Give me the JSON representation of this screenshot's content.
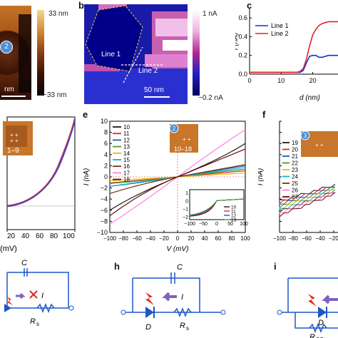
{
  "panel_letters": {
    "b": "b",
    "c": "c",
    "e": "e",
    "f": "f",
    "h": "h",
    "i": "i"
  },
  "panel_a": {
    "colorbar_top": "33 nm",
    "colorbar_bottom": "−33 nm",
    "scale": "nm",
    "marker": "2",
    "colors": [
      "#f2c873",
      "#c77a2a",
      "#5a2810",
      "#140604"
    ]
  },
  "panel_b": {
    "colorbar_top": "1 nA",
    "colorbar_bottom": "−0.2 nA",
    "scale": "50 nm",
    "line1": "Line 1",
    "line2": "Line 2",
    "colors": [
      "#ffffff",
      "#e89ad8",
      "#a02080",
      "#1818b8",
      "#00006a"
    ]
  },
  "panel_d": {
    "inset": "1–9",
    "x_ticks": [
      "20",
      "40",
      "60",
      "80",
      "100"
    ],
    "xlabel": "(mV)"
  },
  "panel_e": {
    "inset_label": "10–18",
    "marker": "2",
    "ylabel": "I (nA)",
    "xlabel": "V (mV)",
    "y_ticks": [
      "10",
      "8",
      "6",
      "4",
      "2",
      "0",
      "−2",
      "−4",
      "−6",
      "−8",
      "−10"
    ],
    "x_ticks": [
      "−100",
      "−80",
      "−60",
      "−40",
      "−20",
      "0",
      "20",
      "40",
      "60",
      "80",
      "100"
    ],
    "legend": [
      "10",
      "11",
      "12",
      "13",
      "14",
      "15",
      "16",
      "17",
      "18"
    ],
    "colors": [
      "#1a1a1a",
      "#e6261f",
      "#1f56c8",
      "#4a9a2a",
      "#f0b400",
      "#00b4d8",
      "#7a2e12",
      "#ff80e0",
      "#6a0a0a"
    ],
    "subinset": {
      "y_ticks": [
        "1",
        "0",
        "−1",
        "−2"
      ],
      "x_ticks": [
        "−100",
        "−50",
        "0",
        "50",
        "100"
      ],
      "legend": [
        "10",
        "11",
        "12",
        "13"
      ]
    }
  },
  "panel_f": {
    "marker": "3",
    "ylabel": "I (nA)",
    "x_ticks": [
      "−100",
      "−80",
      "−60",
      "−40",
      "−20"
    ],
    "legend": [
      "19",
      "20",
      "21",
      "22",
      "23",
      "24",
      "25",
      "26",
      "27"
    ],
    "colors": [
      "#1a1a1a",
      "#e6261f",
      "#1f56c8",
      "#4a9a2a",
      "#f0b400",
      "#00b4d8",
      "#7a2e12",
      "#ff80e0",
      "#6a0a0a"
    ]
  },
  "chart_data": [
    {
      "type": "line",
      "title": "",
      "xlabel": "d (nm)",
      "ylabel": "I (nA)",
      "y_ticks": [
        "0.6",
        "0.4",
        "0.2",
        "0.0"
      ],
      "x_ticks": [
        "0",
        "10",
        "20"
      ],
      "ylim": [
        0,
        0.7
      ],
      "xlim": [
        0,
        28
      ],
      "series": [
        {
          "name": "Line 1",
          "color": "#1030d0",
          "x": [
            0,
            2,
            4,
            6,
            8,
            10,
            12,
            14,
            15,
            16,
            17,
            18,
            19,
            20,
            21,
            22,
            23,
            24,
            25,
            26,
            27,
            28
          ],
          "y": [
            0.02,
            0.02,
            0.02,
            0.02,
            0.02,
            0.02,
            0.02,
            0.02,
            0.02,
            0.02,
            0.04,
            0.12,
            0.19,
            0.2,
            0.2,
            0.18,
            0.18,
            0.19,
            0.2,
            0.2,
            0.2,
            0.2
          ]
        },
        {
          "name": "Line 2",
          "color": "#e82020",
          "x": [
            0,
            2,
            4,
            6,
            8,
            10,
            12,
            14,
            15,
            16,
            17,
            18,
            19,
            20,
            21,
            22,
            23,
            24,
            25,
            26,
            27,
            28
          ],
          "y": [
            0.02,
            0.02,
            0.02,
            0.02,
            0.02,
            0.02,
            0.02,
            0.02,
            0.02,
            0.03,
            0.06,
            0.16,
            0.3,
            0.42,
            0.48,
            0.52,
            0.54,
            0.55,
            0.56,
            0.56,
            0.56,
            0.56
          ]
        }
      ]
    }
  ],
  "circuits": {
    "g": {
      "C": "C",
      "I": "I",
      "Rs": "R",
      "Rs_sub": "s"
    },
    "h": {
      "C": "C",
      "I": "I",
      "D": "D",
      "Rs": "R",
      "Rs_sub": "s"
    },
    "i": {
      "D": "D",
      "Rs": "R",
      "Rs_sub": "SS"
    }
  }
}
